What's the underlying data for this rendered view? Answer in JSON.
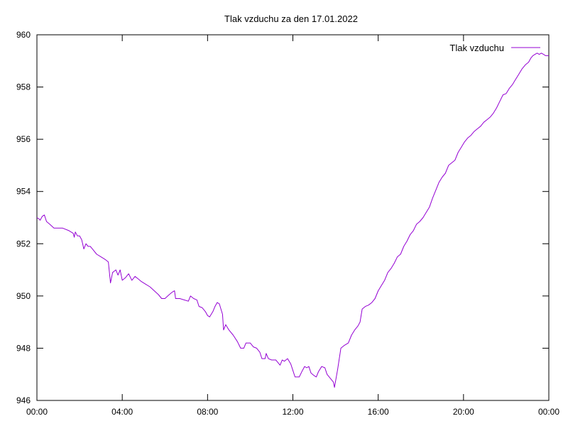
{
  "chart_data": {
    "type": "line",
    "title": "Tlak vzduchu za den 17.01.2022",
    "xlabel": "",
    "ylabel": "",
    "x_unit": "hours",
    "xlim": [
      0,
      24
    ],
    "ylim": [
      946,
      960
    ],
    "x_ticks": [
      0,
      4,
      8,
      12,
      16,
      20,
      24
    ],
    "x_tick_labels": [
      "00:00",
      "04:00",
      "08:00",
      "12:00",
      "16:00",
      "20:00",
      "00:00"
    ],
    "y_ticks": [
      946,
      948,
      950,
      952,
      954,
      956,
      958,
      960
    ],
    "y_tick_labels": [
      "946",
      "948",
      "950",
      "952",
      "954",
      "956",
      "958",
      "960"
    ],
    "grid": false,
    "legend_position": "top-right",
    "series": [
      {
        "name": "Tlak vzduchu",
        "color": "#9400d3",
        "points": [
          [
            0.0,
            953.0
          ],
          [
            0.1,
            952.95
          ],
          [
            0.15,
            952.9
          ],
          [
            0.25,
            953.05
          ],
          [
            0.35,
            953.1
          ],
          [
            0.45,
            952.85
          ],
          [
            0.6,
            952.75
          ],
          [
            0.8,
            952.6
          ],
          [
            1.2,
            952.6
          ],
          [
            1.5,
            952.5
          ],
          [
            1.7,
            952.4
          ],
          [
            1.75,
            952.25
          ],
          [
            1.8,
            952.45
          ],
          [
            1.9,
            952.3
          ],
          [
            2.0,
            952.3
          ],
          [
            2.1,
            952.15
          ],
          [
            2.2,
            951.8
          ],
          [
            2.3,
            952.0
          ],
          [
            2.4,
            951.9
          ],
          [
            2.5,
            951.9
          ],
          [
            2.6,
            951.8
          ],
          [
            2.8,
            951.6
          ],
          [
            3.0,
            951.5
          ],
          [
            3.2,
            951.4
          ],
          [
            3.35,
            951.3
          ],
          [
            3.45,
            950.5
          ],
          [
            3.55,
            950.9
          ],
          [
            3.7,
            951.0
          ],
          [
            3.8,
            950.8
          ],
          [
            3.9,
            951.0
          ],
          [
            4.0,
            950.6
          ],
          [
            4.15,
            950.7
          ],
          [
            4.3,
            950.85
          ],
          [
            4.45,
            950.6
          ],
          [
            4.6,
            950.75
          ],
          [
            4.75,
            950.65
          ],
          [
            4.9,
            950.55
          ],
          [
            5.1,
            950.45
          ],
          [
            5.3,
            950.35
          ],
          [
            5.5,
            950.2
          ],
          [
            5.7,
            950.05
          ],
          [
            5.85,
            949.9
          ],
          [
            6.0,
            949.9
          ],
          [
            6.2,
            950.05
          ],
          [
            6.35,
            950.15
          ],
          [
            6.45,
            950.2
          ],
          [
            6.5,
            949.9
          ],
          [
            6.7,
            949.9
          ],
          [
            6.9,
            949.85
          ],
          [
            7.1,
            949.8
          ],
          [
            7.2,
            950.0
          ],
          [
            7.35,
            949.9
          ],
          [
            7.5,
            949.85
          ],
          [
            7.6,
            949.6
          ],
          [
            7.75,
            949.55
          ],
          [
            7.9,
            949.4
          ],
          [
            8.0,
            949.25
          ],
          [
            8.1,
            949.2
          ],
          [
            8.25,
            949.4
          ],
          [
            8.35,
            949.6
          ],
          [
            8.45,
            949.75
          ],
          [
            8.55,
            949.7
          ],
          [
            8.7,
            949.3
          ],
          [
            8.75,
            948.7
          ],
          [
            8.85,
            948.9
          ],
          [
            9.0,
            948.7
          ],
          [
            9.2,
            948.5
          ],
          [
            9.4,
            948.25
          ],
          [
            9.55,
            948.0
          ],
          [
            9.7,
            948.0
          ],
          [
            9.8,
            948.2
          ],
          [
            10.0,
            948.2
          ],
          [
            10.15,
            948.05
          ],
          [
            10.3,
            948.0
          ],
          [
            10.45,
            947.85
          ],
          [
            10.55,
            947.6
          ],
          [
            10.7,
            947.6
          ],
          [
            10.75,
            947.8
          ],
          [
            10.85,
            947.6
          ],
          [
            11.0,
            947.55
          ],
          [
            11.2,
            947.55
          ],
          [
            11.3,
            947.45
          ],
          [
            11.4,
            947.35
          ],
          [
            11.5,
            947.55
          ],
          [
            11.6,
            947.5
          ],
          [
            11.75,
            947.6
          ],
          [
            11.9,
            947.4
          ],
          [
            12.0,
            947.15
          ],
          [
            12.1,
            946.9
          ],
          [
            12.3,
            946.9
          ],
          [
            12.45,
            947.15
          ],
          [
            12.55,
            947.3
          ],
          [
            12.65,
            947.25
          ],
          [
            12.75,
            947.3
          ],
          [
            12.85,
            947.05
          ],
          [
            13.0,
            946.95
          ],
          [
            13.1,
            946.9
          ],
          [
            13.2,
            947.1
          ],
          [
            13.35,
            947.3
          ],
          [
            13.5,
            947.25
          ],
          [
            13.6,
            947.0
          ],
          [
            13.75,
            946.85
          ],
          [
            13.9,
            946.7
          ],
          [
            13.95,
            946.5
          ],
          [
            14.1,
            947.2
          ],
          [
            14.25,
            948.0
          ],
          [
            14.4,
            948.1
          ],
          [
            14.6,
            948.2
          ],
          [
            14.75,
            948.5
          ],
          [
            14.9,
            948.7
          ],
          [
            15.05,
            948.85
          ],
          [
            15.15,
            949.0
          ],
          [
            15.25,
            949.5
          ],
          [
            15.4,
            949.6
          ],
          [
            15.55,
            949.65
          ],
          [
            15.7,
            949.75
          ],
          [
            15.85,
            949.9
          ],
          [
            16.0,
            950.2
          ],
          [
            16.15,
            950.4
          ],
          [
            16.3,
            950.6
          ],
          [
            16.45,
            950.9
          ],
          [
            16.6,
            951.05
          ],
          [
            16.75,
            951.25
          ],
          [
            16.9,
            951.5
          ],
          [
            17.05,
            951.6
          ],
          [
            17.2,
            951.9
          ],
          [
            17.35,
            952.1
          ],
          [
            17.5,
            952.35
          ],
          [
            17.65,
            952.5
          ],
          [
            17.8,
            952.75
          ],
          [
            17.95,
            952.85
          ],
          [
            18.1,
            953.0
          ],
          [
            18.25,
            953.2
          ],
          [
            18.4,
            953.4
          ],
          [
            18.55,
            953.75
          ],
          [
            18.7,
            954.05
          ],
          [
            18.85,
            954.35
          ],
          [
            19.0,
            954.55
          ],
          [
            19.15,
            954.7
          ],
          [
            19.3,
            955.0
          ],
          [
            19.45,
            955.1
          ],
          [
            19.6,
            955.2
          ],
          [
            19.75,
            955.5
          ],
          [
            19.9,
            955.7
          ],
          [
            20.05,
            955.9
          ],
          [
            20.2,
            956.05
          ],
          [
            20.35,
            956.15
          ],
          [
            20.5,
            956.3
          ],
          [
            20.65,
            956.4
          ],
          [
            20.8,
            956.5
          ],
          [
            20.95,
            956.65
          ],
          [
            21.1,
            956.75
          ],
          [
            21.25,
            956.85
          ],
          [
            21.4,
            957.0
          ],
          [
            21.55,
            957.2
          ],
          [
            21.7,
            957.45
          ],
          [
            21.85,
            957.7
          ],
          [
            22.0,
            957.75
          ],
          [
            22.15,
            957.95
          ],
          [
            22.3,
            958.1
          ],
          [
            22.45,
            958.3
          ],
          [
            22.6,
            958.5
          ],
          [
            22.75,
            958.7
          ],
          [
            22.9,
            958.85
          ],
          [
            23.05,
            958.95
          ],
          [
            23.15,
            959.1
          ],
          [
            23.25,
            959.2
          ],
          [
            23.35,
            959.25
          ],
          [
            23.45,
            959.3
          ],
          [
            23.55,
            959.25
          ],
          [
            23.65,
            959.3
          ],
          [
            23.75,
            959.25
          ],
          [
            23.85,
            959.2
          ],
          [
            24.0,
            959.2
          ]
        ]
      }
    ]
  }
}
